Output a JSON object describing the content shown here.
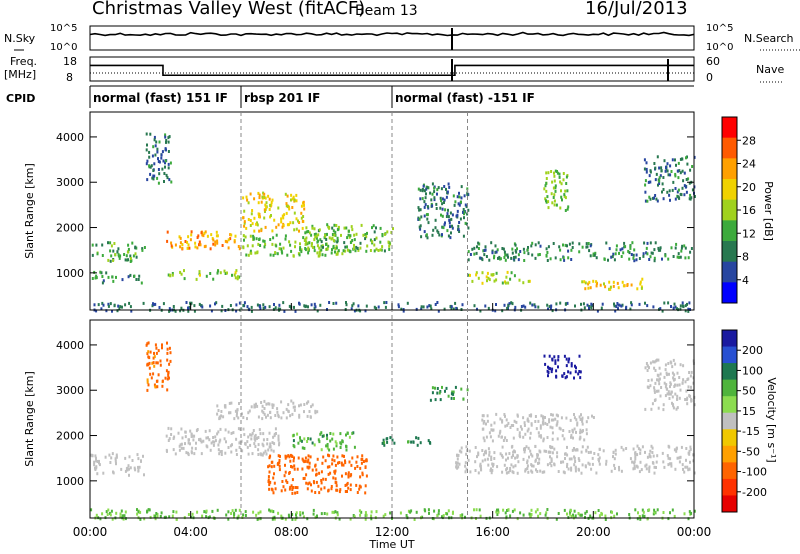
{
  "header": {
    "site": "Christmas Valley West (fitACF)",
    "beam": "Beam 13",
    "date": "16/Jul/2013"
  },
  "nsky_panel": {
    "left_label": "N.Sky",
    "right_label": "N.Search",
    "left_ticks": [
      "10^5",
      "10^0"
    ],
    "right_ticks": [
      "10^5",
      "10^0"
    ],
    "nsky_level": [
      3.6,
      3.6,
      3.5,
      3.6,
      3.7,
      3.6,
      3.5,
      3.6,
      3.7,
      3.6,
      3.5,
      3.6,
      3.6,
      3.6,
      3.5,
      3.6,
      3.6,
      3.7,
      3.6,
      3.6,
      3.6,
      3.6,
      3.7,
      3.6,
      3.6
    ]
  },
  "freq_panel": {
    "left_label_1": "Freq.",
    "left_label_2": "[MHz]",
    "right_label": "Nave",
    "left_ticks": [
      "18",
      "8"
    ],
    "right_ticks": [
      "60",
      "0"
    ],
    "freq_steps": [
      {
        "t0": 0.0,
        "t1": 2.9,
        "mhz": 14.5
      },
      {
        "t0": 2.9,
        "t1": 14.5,
        "mhz": 10.4
      },
      {
        "t0": 14.5,
        "t1": 24.0,
        "mhz": 14.5
      }
    ],
    "nave_level": 20
  },
  "cpid_panel": {
    "label": "CPID",
    "modes": [
      {
        "t0": 0.0,
        "t1": 6.0,
        "name": "normal (fast) 151 IF"
      },
      {
        "t0": 6.0,
        "t1": 12.0,
        "name": "rbsp 201 IF"
      },
      {
        "t0": 12.0,
        "t1": 24.0,
        "name": "normal (fast) -151 IF"
      }
    ]
  },
  "colorbars": {
    "power": {
      "label": "Power [dB]",
      "ticks": [
        "28",
        "24",
        "20",
        "16",
        "12",
        "8",
        "4"
      ],
      "colors": [
        "#ff0000",
        "#ff5a00",
        "#ffa000",
        "#f0d200",
        "#a0d21e",
        "#3caa3c",
        "#287850",
        "#2846a0",
        "#0000ff"
      ]
    },
    "velocity": {
      "label": "Velocity [m s⁻¹]",
      "ticks": [
        "200",
        "100",
        "50",
        "15",
        "-15",
        "-50",
        "-100",
        "-200"
      ],
      "colors": [
        "#1a1aa0",
        "#2850d2",
        "#1e7850",
        "#4fb43c",
        "#8cdc50",
        "#c0c0c0",
        "#f0c800",
        "#ffa000",
        "#ff6400",
        "#ff3200",
        "#e60000"
      ]
    }
  },
  "chart_data": [
    {
      "type": "heatmap",
      "panel": "power",
      "ylabel": "Slant Range [km]",
      "yticks": [
        "1000",
        "2000",
        "3000",
        "4000"
      ],
      "ylim": [
        180,
        4550
      ],
      "xlim": [
        0,
        24
      ],
      "unit": "dB",
      "regions": [
        {
          "t0": 0.0,
          "t1": 2.2,
          "r0": 1280,
          "r1": 1700,
          "level": 11
        },
        {
          "t0": 0.0,
          "t1": 2.2,
          "r0": 800,
          "r1": 1050,
          "level": 9
        },
        {
          "t0": 2.2,
          "t1": 3.2,
          "r0": 3000,
          "r1": 4100,
          "level": 7
        },
        {
          "t0": 3.0,
          "t1": 6.0,
          "r0": 1550,
          "r1": 1950,
          "level": 24
        },
        {
          "t0": 3.0,
          "t1": 6.0,
          "r0": 880,
          "r1": 1100,
          "level": 15
        },
        {
          "t0": 6.0,
          "t1": 8.5,
          "r0": 1950,
          "r1": 2800,
          "level": 20
        },
        {
          "t0": 6.0,
          "t1": 10.0,
          "r0": 1400,
          "r1": 1900,
          "level": 14
        },
        {
          "t0": 8.5,
          "t1": 12.0,
          "r0": 1500,
          "r1": 2100,
          "level": 13
        },
        {
          "t0": 13.0,
          "t1": 15.0,
          "r0": 1800,
          "r1": 3000,
          "level": 8
        },
        {
          "t0": 15.0,
          "t1": 17.5,
          "r0": 800,
          "r1": 1050,
          "level": 16
        },
        {
          "t0": 15.0,
          "t1": 24.0,
          "r0": 1300,
          "r1": 1700,
          "level": 9
        },
        {
          "t0": 18.0,
          "t1": 19.0,
          "r0": 2400,
          "r1": 3300,
          "level": 14
        },
        {
          "t0": 19.5,
          "t1": 22.0,
          "r0": 650,
          "r1": 900,
          "level": 21
        },
        {
          "t0": 22.0,
          "t1": 24.0,
          "r0": 2600,
          "r1": 3600,
          "level": 7
        },
        {
          "t0": 0.0,
          "t1": 24.0,
          "r0": 180,
          "r1": 380,
          "level": 6
        }
      ]
    },
    {
      "type": "heatmap",
      "panel": "velocity",
      "ylabel": "Slant Range [km]",
      "yticks": [
        "1000",
        "2000",
        "3000",
        "4000"
      ],
      "ylim": [
        180,
        4550
      ],
      "xlim": [
        0,
        24
      ],
      "unit": "m s-1",
      "regions": [
        {
          "t0": 0.0,
          "t1": 2.2,
          "r0": 1150,
          "r1": 1650,
          "velocity": 0
        },
        {
          "t0": 2.2,
          "t1": 3.2,
          "r0": 3000,
          "r1": 4100,
          "velocity": -60
        },
        {
          "t0": 3.0,
          "t1": 7.5,
          "r0": 1600,
          "r1": 2200,
          "velocity": 0
        },
        {
          "t0": 5.0,
          "t1": 9.0,
          "r0": 2400,
          "r1": 2800,
          "velocity": 0
        },
        {
          "t0": 7.0,
          "t1": 11.0,
          "r0": 750,
          "r1": 1600,
          "velocity": -70
        },
        {
          "t0": 8.0,
          "t1": 10.5,
          "r0": 1700,
          "r1": 2100,
          "velocity": 40
        },
        {
          "t0": 11.5,
          "t1": 12.2,
          "r0": 1800,
          "r1": 2000,
          "velocity": 60
        },
        {
          "t0": 12.5,
          "t1": 13.5,
          "r0": 1800,
          "r1": 2000,
          "velocity": 60
        },
        {
          "t0": 13.5,
          "t1": 15.0,
          "r0": 2800,
          "r1": 3100,
          "velocity": 50
        },
        {
          "t0": 14.5,
          "t1": 24.0,
          "r0": 1200,
          "r1": 1800,
          "velocity": 0
        },
        {
          "t0": 15.5,
          "t1": 20.0,
          "r0": 1900,
          "r1": 2500,
          "velocity": 0
        },
        {
          "t0": 18.0,
          "t1": 19.5,
          "r0": 3300,
          "r1": 3800,
          "velocity": 220
        },
        {
          "t0": 22.0,
          "t1": 24.0,
          "r0": 2600,
          "r1": 3700,
          "velocity": 0
        },
        {
          "t0": 0.0,
          "t1": 24.0,
          "r0": 180,
          "r1": 400,
          "velocity": 30
        }
      ]
    }
  ],
  "time_axis": {
    "label": "Time UT",
    "ticks": [
      {
        "t": 0,
        "text": "00:00"
      },
      {
        "t": 4,
        "text": "04:00"
      },
      {
        "t": 8,
        "text": "08:00"
      },
      {
        "t": 12,
        "text": "12:00"
      },
      {
        "t": 16,
        "text": "16:00"
      },
      {
        "t": 20,
        "text": "20:00"
      },
      {
        "t": 24,
        "text": "00:00"
      }
    ]
  }
}
